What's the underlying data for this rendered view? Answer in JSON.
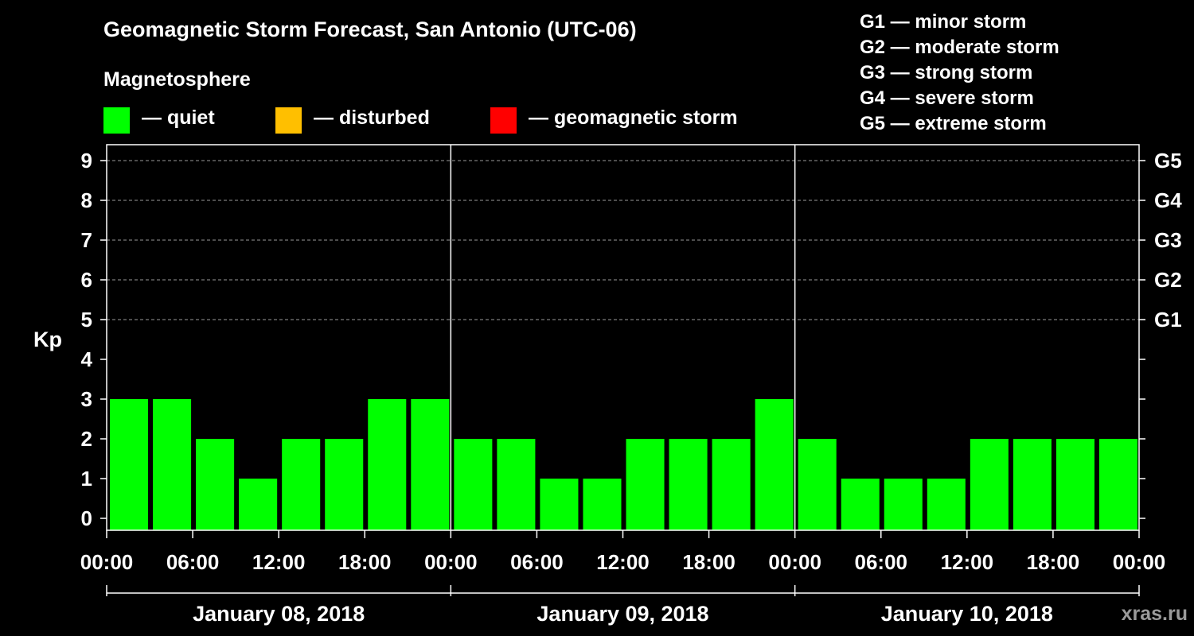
{
  "chart_data": {
    "type": "bar",
    "title": "Geomagnetic Storm Forecast, San Antonio (UTC-06)",
    "ylabel": "Kp",
    "ylim": [
      0,
      9
    ],
    "y_ticks": [
      "0",
      "1",
      "2",
      "3",
      "4",
      "5",
      "6",
      "7",
      "8",
      "9"
    ],
    "right_axis": [
      {
        "kp": 5,
        "label": "G1"
      },
      {
        "kp": 6,
        "label": "G2"
      },
      {
        "kp": 7,
        "label": "G3"
      },
      {
        "kp": 8,
        "label": "G4"
      },
      {
        "kp": 9,
        "label": "G5"
      }
    ],
    "x_ticks": [
      "00:00",
      "06:00",
      "12:00",
      "18:00",
      "00:00",
      "06:00",
      "12:00",
      "18:00",
      "00:00",
      "06:00",
      "12:00",
      "18:00",
      "00:00"
    ],
    "days": [
      "January 08, 2018",
      "January 09, 2018",
      "January 10, 2018"
    ],
    "interval_hours": 3,
    "values": [
      3,
      3,
      2,
      1,
      2,
      2,
      3,
      3,
      2,
      2,
      1,
      1,
      2,
      2,
      2,
      3,
      2,
      1,
      1,
      1,
      2,
      2,
      2,
      2
    ],
    "bar_colors": {
      "quiet": "#00ff00",
      "disturbed": "#ffbf00",
      "storm": "#ff0000"
    },
    "grid": "dashed at integer Kp levels 5-9",
    "legend": {
      "heading": "Magnetosphere",
      "items": [
        {
          "label": "— quiet",
          "color": "#00ff00"
        },
        {
          "label": "— disturbed",
          "color": "#ffbf00"
        },
        {
          "label": "— geomagnetic storm",
          "color": "#ff0000"
        }
      ]
    },
    "g_scale": [
      "G1 — minor storm",
      "G2 — moderate storm",
      "G3 — strong storm",
      "G4 — severe storm",
      "G5 — extreme storm"
    ]
  },
  "credit": "xras.ru"
}
